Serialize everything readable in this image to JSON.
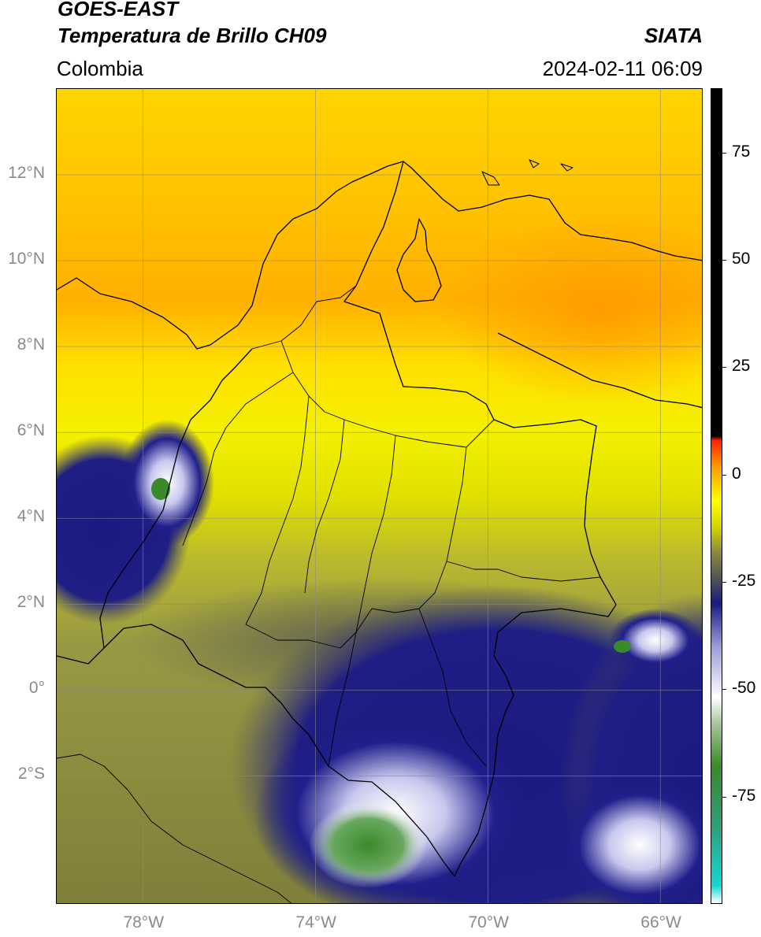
{
  "header": {
    "satellite": "GOES-EAST",
    "product": "Temperatura de Brillo CH09",
    "region": "Colombia",
    "agency": "SIATA",
    "datetime": "2024-02-11 06:09"
  },
  "map": {
    "lat_ticks": [
      "12°N",
      "10°N",
      "8°N",
      "6°N",
      "4°N",
      "2°N",
      "0°",
      "2°S"
    ],
    "lon_ticks": [
      "78°W",
      "74°W",
      "70°W",
      "66°W"
    ],
    "extent": {
      "lon": [
        -80,
        -65
      ],
      "lat": [
        -5,
        14
      ]
    },
    "gridlines": true
  },
  "colorbar": {
    "tick_labels": [
      "75",
      "50",
      "25",
      "0",
      "-25",
      "-50",
      "-75"
    ],
    "tick_values": [
      75,
      50,
      25,
      0,
      -25,
      -50,
      -75
    ],
    "range": [
      -100,
      90
    ],
    "stops": [
      {
        "value": -100,
        "color": "#ffffff"
      },
      {
        "value": -96,
        "color": "#14d9d2"
      },
      {
        "value": -82,
        "color": "#2e9e7c"
      },
      {
        "value": -68,
        "color": "#3a8a2a"
      },
      {
        "value": -58,
        "color": "#a8c79a"
      },
      {
        "value": -52,
        "color": "#ffffff"
      },
      {
        "value": -40,
        "color": "#9a9ad6"
      },
      {
        "value": -30,
        "color": "#1a1a80"
      },
      {
        "value": -24,
        "color": "#555555"
      },
      {
        "value": -18,
        "color": "#8c8c3c"
      },
      {
        "value": -12,
        "color": "#d6d600"
      },
      {
        "value": -6,
        "color": "#ffff00"
      },
      {
        "value": 2,
        "color": "#ff9900"
      },
      {
        "value": 8,
        "color": "#ff2000"
      },
      {
        "value": 9,
        "color": "#000000"
      },
      {
        "value": 90,
        "color": "#000000"
      }
    ]
  }
}
